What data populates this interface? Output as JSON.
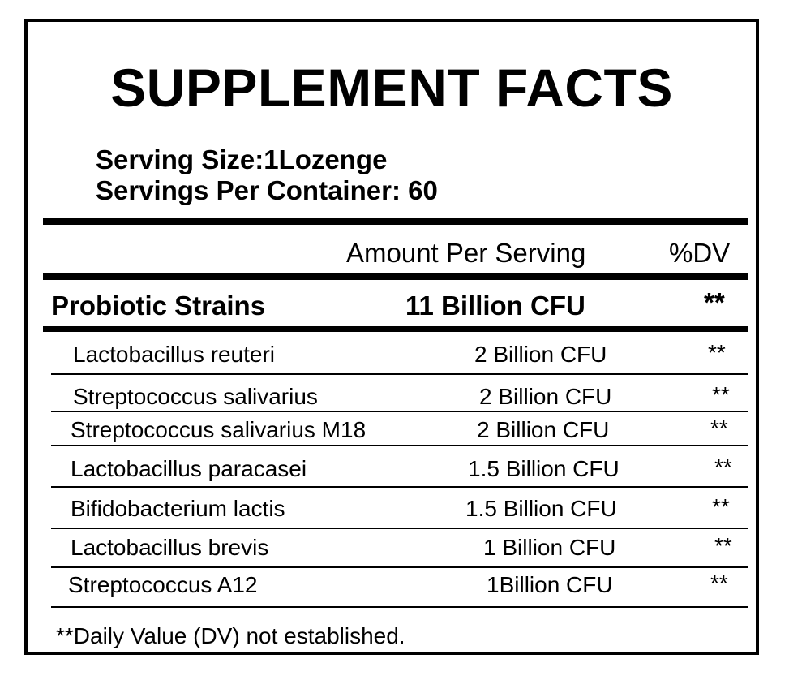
{
  "label": {
    "title": "SUPPLEMENT FACTS",
    "serving_size": "Serving Size:1Lozenge",
    "servings_per_container": "Servings Per Container: 60",
    "header": {
      "amount": "Amount Per Serving",
      "dv": "%DV"
    },
    "group": {
      "name": "Probiotic Strains",
      "amount": "11 Billion CFU",
      "dv": "**"
    },
    "rows": [
      {
        "name": "Lactobacillus reuteri",
        "amount": "2 Billion CFU",
        "dv": "**"
      },
      {
        "name": "Streptococcus salivarius",
        "amount": "2 Billion CFU",
        "dv": "**"
      },
      {
        "name": "Streptococcus salivarius M18",
        "amount": "2 Billion CFU",
        "dv": "**"
      },
      {
        "name": "Lactobacillus paracasei",
        "amount": "1.5 Billion CFU",
        "dv": "**"
      },
      {
        "name": "Bifidobacterium lactis",
        "amount": "1.5 Billion CFU",
        "dv": "**"
      },
      {
        "name": "Lactobacillus brevis",
        "amount": "1 Billion CFU",
        "dv": "**"
      },
      {
        "name": "Streptococcus A12",
        "amount": "1Billion CFU",
        "dv": "**"
      }
    ],
    "footnote": "**Daily Value (DV) not established."
  }
}
